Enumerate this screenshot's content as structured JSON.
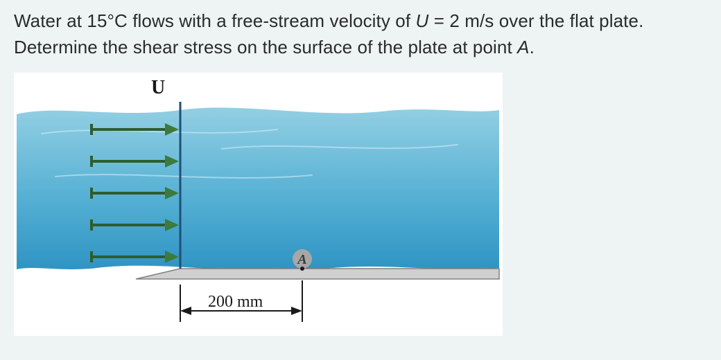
{
  "problem": {
    "prefix": "Water at 15°C flows with a free-stream velocity of ",
    "var_U": "U",
    "eq_val": " = 2 m/s over the flat plate. Determine the shear stress on the surface of the plate at point ",
    "var_A": "A",
    "suffix": "."
  },
  "figure": {
    "U_label": "U",
    "A_label": "A",
    "dim_label": "200 mm",
    "water_gradient_top": "#93cfe3",
    "water_gradient_mid": "#55b0d4",
    "water_gradient_bot": "#2e93c2",
    "wave_stroke": "#cfeaf3",
    "plate_fill": "#d0d0d0",
    "plate_stroke": "#808080",
    "arrow_stroke": "#2e5d2e",
    "arrow_fill": "#3d7a3d",
    "vline_stroke": "#1e4f7a",
    "dim_color": "#1a1a1a",
    "label_color": "#1a1a1a",
    "A_fill": "#a7a7a7",
    "A_text": "#3a3a3a",
    "font_serif": "Georgia, 'Times New Roman', serif"
  }
}
